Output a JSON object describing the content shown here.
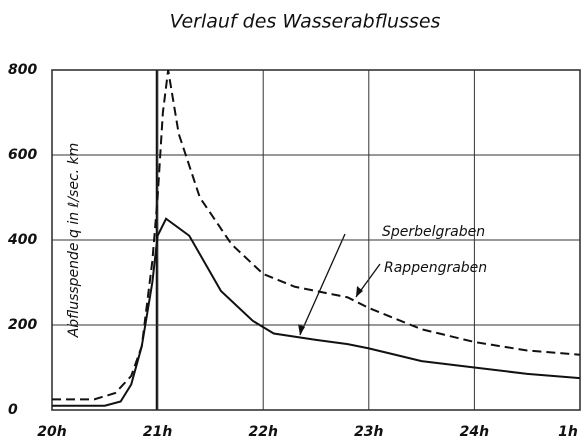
{
  "chart_data": {
    "type": "line",
    "title": "Verlauf des Wasserabflusses",
    "y_label": "Abflusspende q in ℓ/sec. km",
    "xlim": [
      20,
      25
    ],
    "xticks": [
      {
        "value": 20,
        "label": "20h"
      },
      {
        "value": 21,
        "label": "21h"
      },
      {
        "value": 22,
        "label": "22h"
      },
      {
        "value": 23,
        "label": "23h"
      },
      {
        "value": 24,
        "label": "24h"
      },
      {
        "value": 25,
        "label": "1h"
      }
    ],
    "ylim": [
      0,
      800
    ],
    "yticks": [
      0,
      200,
      400,
      600,
      800
    ],
    "grid": true,
    "series": [
      {
        "name": "Sperbelgraben",
        "color": "#111111",
        "linestyle": "solid",
        "x": [
          20.0,
          20.5,
          20.65,
          20.75,
          20.85,
          20.95,
          21.0,
          21.08,
          21.3,
          21.6,
          21.9,
          22.1,
          22.5,
          22.8,
          23.0,
          23.5,
          24.0,
          24.5,
          25.0
        ],
        "values": [
          10,
          10,
          20,
          60,
          150,
          300,
          410,
          450,
          410,
          280,
          210,
          180,
          165,
          155,
          145,
          115,
          100,
          85,
          75
        ]
      },
      {
        "name": "Rappengraben",
        "color": "#111111",
        "linestyle": "dashed",
        "x": [
          20.0,
          20.4,
          20.6,
          20.75,
          20.85,
          20.95,
          21.0,
          21.05,
          21.1,
          21.2,
          21.4,
          21.7,
          22.0,
          22.3,
          22.6,
          22.8,
          23.0,
          23.5,
          24.0,
          24.5,
          25.0
        ],
        "values": [
          25,
          25,
          40,
          80,
          150,
          350,
          500,
          700,
          800,
          650,
          500,
          390,
          320,
          290,
          275,
          265,
          240,
          190,
          160,
          140,
          130
        ]
      }
    ]
  }
}
